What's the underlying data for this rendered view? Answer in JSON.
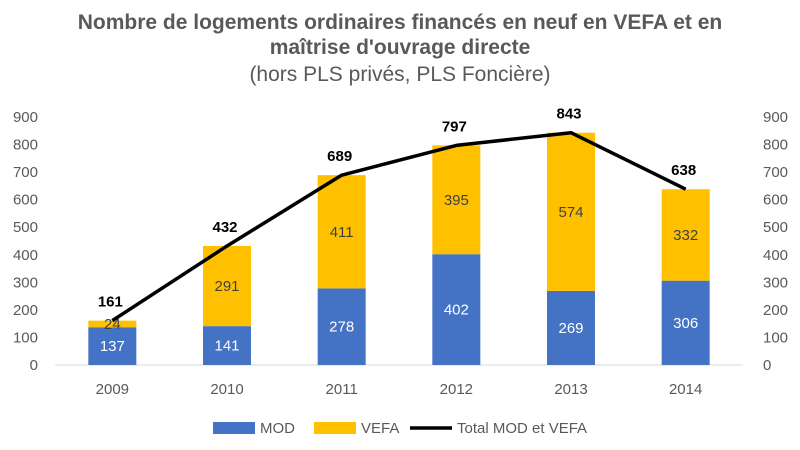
{
  "chart_data": {
    "type": "bar",
    "stacked": true,
    "title_line1": "Nombre de logements ordinaires financés en neuf en VEFA et en",
    "title_line2": "maîtrise d'ouvrage directe",
    "subtitle": "(hors PLS privés, PLS Foncière)",
    "categories": [
      "2009",
      "2010",
      "2011",
      "2012",
      "2013",
      "2014"
    ],
    "series": [
      {
        "name": "MOD",
        "kind": "bar",
        "color": "#4472C4",
        "label_color": "#ffffff",
        "values": [
          137,
          141,
          278,
          402,
          269,
          306
        ]
      },
      {
        "name": "VEFA",
        "kind": "bar",
        "color": "#FFC000",
        "label_color": "#404040",
        "values": [
          24,
          291,
          411,
          395,
          574,
          332
        ]
      },
      {
        "name": "Total MOD et VEFA",
        "kind": "line",
        "color": "#000000",
        "values": [
          161,
          432,
          689,
          797,
          843,
          638
        ]
      }
    ],
    "ylim": [
      0,
      900
    ],
    "yticks": [
      "0",
      "100",
      "200",
      "300",
      "400",
      "500",
      "600",
      "700",
      "800",
      "900"
    ],
    "secondary_axis": true,
    "grid": false,
    "legend_position": "bottom"
  }
}
